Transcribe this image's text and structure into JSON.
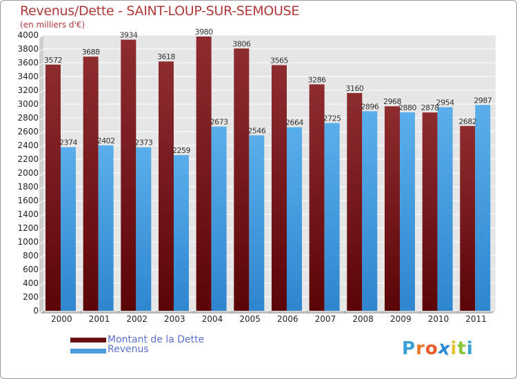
{
  "header": {
    "title": "Revenus/Dette - SAINT-LOUP-SUR-SEMOUSE",
    "unit": "(en milliers d'€)"
  },
  "legend": {
    "items": [
      {
        "label": "Montant de la Dette",
        "color": "#6a0f12"
      },
      {
        "label": "Revenus",
        "color": "#4a9ee0"
      }
    ]
  },
  "brand": {
    "letters": [
      "P",
      "r",
      "o",
      "x",
      "i",
      "t",
      "i"
    ],
    "colors": [
      "#3aa0d8",
      "#e8782a",
      "#e85a2a",
      "#2a8ad8",
      "#e8c02a",
      "#8ac83a",
      "#3aa0d8"
    ]
  },
  "chart_data": {
    "type": "bar",
    "title": "Revenus/Dette - SAINT-LOUP-SUR-SEMOUSE",
    "ylabel": "(en milliers d'€)",
    "categories": [
      "2000",
      "2001",
      "2002",
      "2003",
      "2004",
      "2005",
      "2006",
      "2007",
      "2008",
      "2009",
      "2010",
      "2011"
    ],
    "series": [
      {
        "name": "Montant de la Dette",
        "color": "#7a1f22",
        "values": [
          3572,
          3688,
          3934,
          3618,
          3980,
          3806,
          3565,
          3286,
          3160,
          2968,
          2878,
          2682
        ]
      },
      {
        "name": "Revenus",
        "color": "#4aa3e6",
        "values": [
          2374,
          2402,
          2373,
          2259,
          2673,
          2546,
          2664,
          2725,
          2896,
          2880,
          2954,
          2987
        ]
      }
    ],
    "ylim": [
      0,
      4000
    ],
    "yticks": [
      0,
      200,
      400,
      600,
      800,
      1000,
      1200,
      1400,
      1600,
      1800,
      2000,
      2200,
      2400,
      2600,
      2800,
      3000,
      3200,
      3400,
      3600,
      3800,
      4000
    ],
    "grid": true,
    "legend_position": "bottom-left"
  }
}
